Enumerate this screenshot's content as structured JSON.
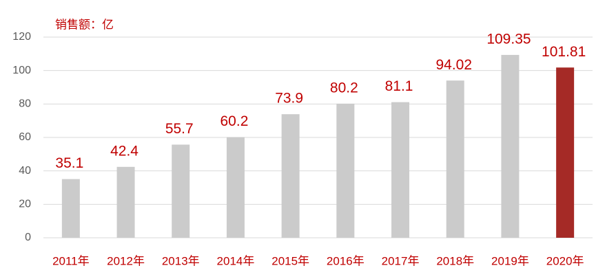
{
  "chart_data": {
    "type": "bar",
    "title": "销售额：亿",
    "categories": [
      "2011年",
      "2012年",
      "2013年",
      "2014年",
      "2015年",
      "2016年",
      "2017年",
      "2018年",
      "2019年",
      "2020年"
    ],
    "values": [
      35.1,
      42.4,
      55.7,
      60.2,
      73.9,
      80.2,
      81.1,
      94.02,
      109.35,
      101.81
    ],
    "colors": [
      "#cbcbcb",
      "#cbcbcb",
      "#cbcbcb",
      "#cbcbcb",
      "#cbcbcb",
      "#cbcbcb",
      "#cbcbcb",
      "#cbcbcb",
      "#cbcbcb",
      "#a52a26"
    ],
    "ylim": [
      0,
      120
    ],
    "yticks": [
      0,
      20,
      40,
      60,
      80,
      100,
      120
    ],
    "grid": true
  }
}
